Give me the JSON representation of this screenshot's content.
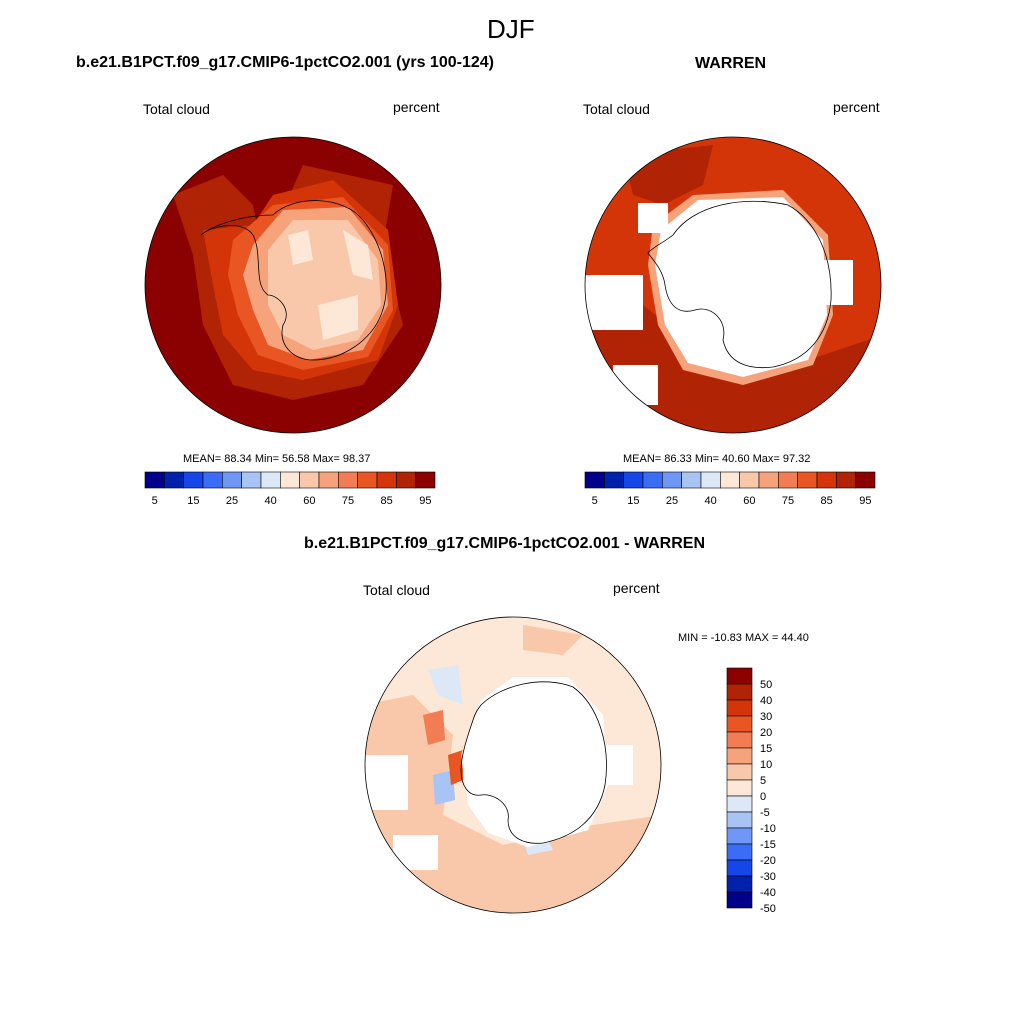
{
  "page": {
    "title": "DJF"
  },
  "panels": [
    {
      "title": "b.e21.B1PCT.f09_g17.CMIP6-1pctCO2.001 (yrs 100-124)",
      "left_label": "Total cloud",
      "right_label": "percent",
      "stats": "MEAN=  88.34  Min=  56.58  Max=  98.37"
    },
    {
      "title": "WARREN",
      "left_label": "Total cloud",
      "right_label": "percent",
      "stats": "MEAN=  86.33  Min=  40.60  Max=  97.32"
    },
    {
      "title": "b.e21.B1PCT.f09_g17.CMIP6-1pctCO2.001 - WARREN",
      "left_label": "Total cloud",
      "right_label": "percent",
      "stats": "MIN = -10.83 MAX =  44.40"
    }
  ],
  "colorbar_abs": {
    "colors": [
      "#00008b",
      "#0022aa",
      "#1446e8",
      "#3a6cf5",
      "#6f98f6",
      "#a8c4f5",
      "#dde8f6",
      "#fde7d6",
      "#f9c7aa",
      "#f6a37c",
      "#f27c53",
      "#ea5524",
      "#d43508",
      "#b02305",
      "#8b0000"
    ],
    "tick_labels": [
      "5",
      "15",
      "25",
      "40",
      "60",
      "75",
      "85",
      "95"
    ]
  },
  "colorbar_diff": {
    "colors": [
      "#8b0000",
      "#b02305",
      "#d43508",
      "#ea5524",
      "#f27c53",
      "#f6a37c",
      "#f9c7aa",
      "#fde7d6",
      "#dde8f6",
      "#a8c4f5",
      "#6f98f6",
      "#3a6cf5",
      "#1446e8",
      "#0022aa",
      "#00008b"
    ],
    "tick_labels": [
      "50",
      "40",
      "30",
      "20",
      "15",
      "10",
      "5",
      "0",
      "-5",
      "-10",
      "-15",
      "-20",
      "-30",
      "-40",
      "-50"
    ]
  },
  "map_colors": {
    "darkest": "#8b0000",
    "dark": "#b02305",
    "mid_dark": "#d43508",
    "mid": "#ea5524",
    "light_mid": "#f6a37c",
    "light": "#f9c7aa",
    "lightest": "#fde7d6",
    "pale_blue": "#dde8f6",
    "blue": "#a8c4f5"
  }
}
